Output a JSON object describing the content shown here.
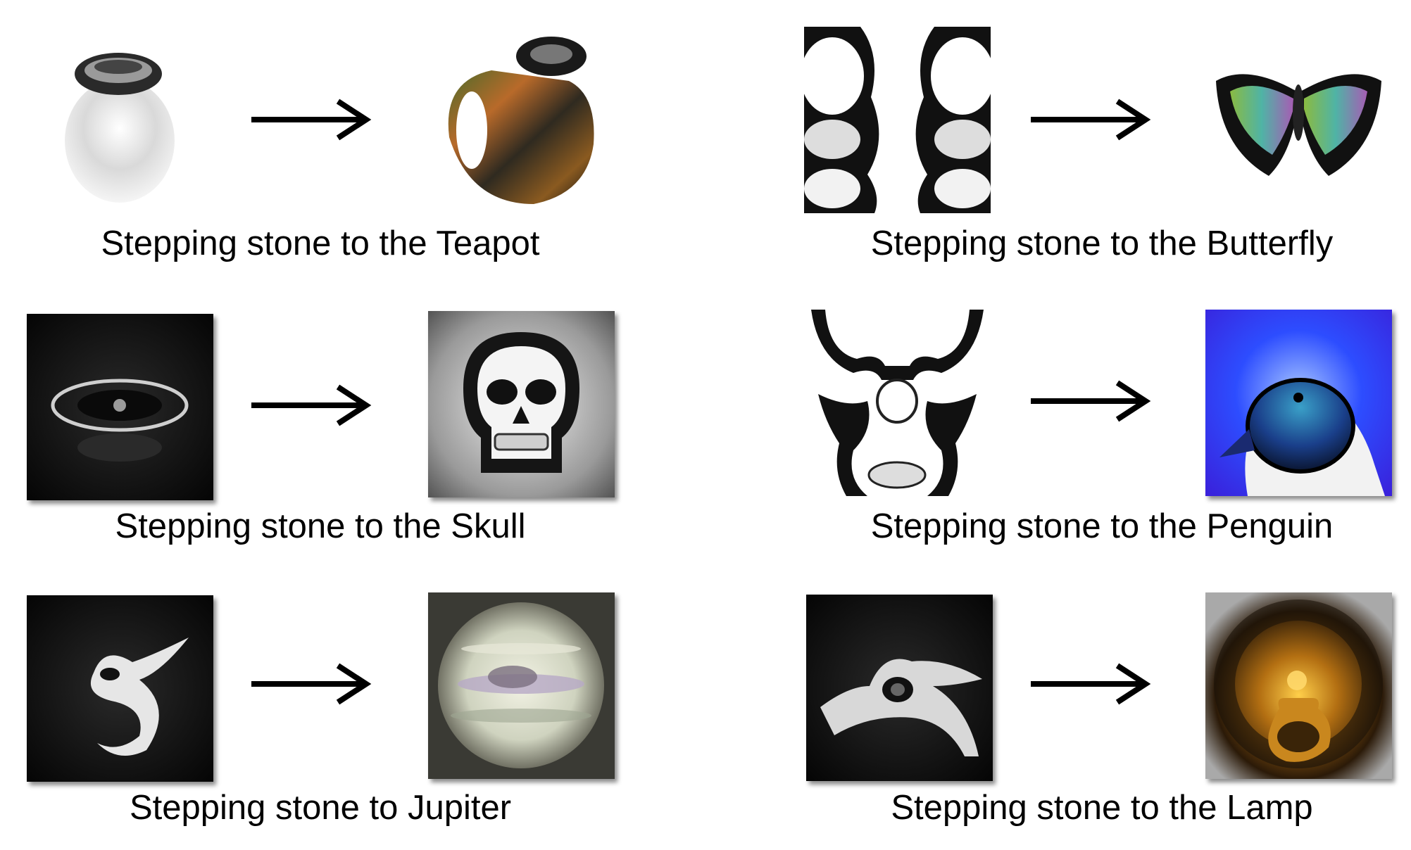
{
  "pairs": [
    {
      "caption": "Stepping stone to the Teapot",
      "source_icon": "egg-with-hat-icon",
      "target_icon": "teapot-icon"
    },
    {
      "caption": "Stepping stone to the Butterfly",
      "source_icon": "symmetric-pattern-icon",
      "target_icon": "butterfly-icon"
    },
    {
      "caption": "Stepping stone to the Skull",
      "source_icon": "eye-pattern-icon",
      "target_icon": "skull-icon"
    },
    {
      "caption": "Stepping stone to the Penguin",
      "source_icon": "mask-pattern-icon",
      "target_icon": "penguin-icon"
    },
    {
      "caption": "Stepping stone to Jupiter",
      "source_icon": "curl-pattern-icon",
      "target_icon": "jupiter-icon"
    },
    {
      "caption": "Stepping stone to the Lamp",
      "source_icon": "ring-pattern-icon",
      "target_icon": "lamp-icon"
    }
  ],
  "colors": {
    "arrow": "#000000",
    "caption": "#000000",
    "background": "#ffffff"
  }
}
